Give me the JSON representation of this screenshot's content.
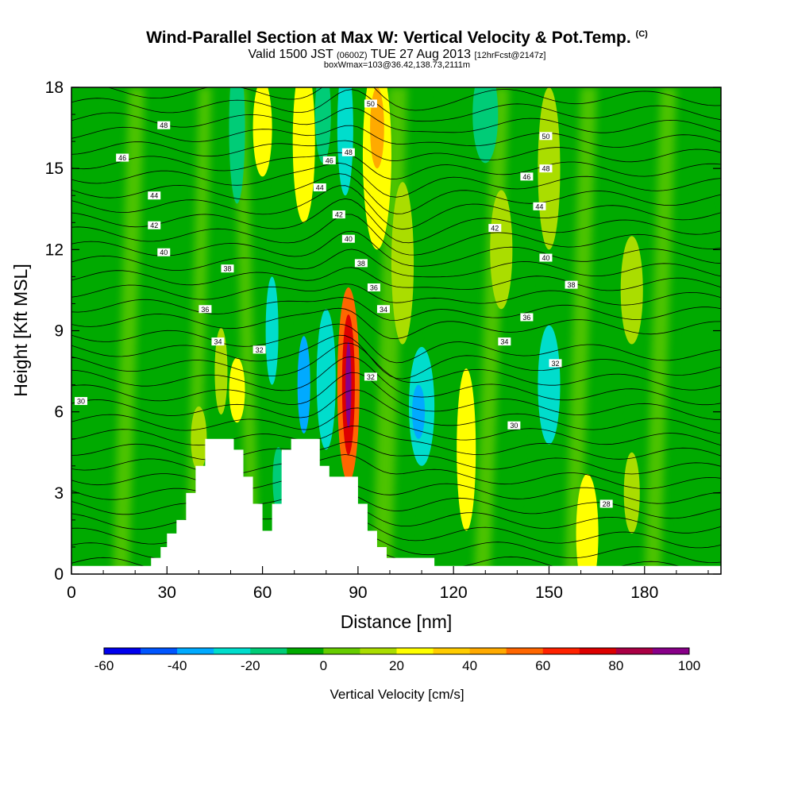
{
  "header": {
    "title": "Wind-Parallel Section at Max W: Vertical Velocity & Pot.Temp.",
    "title_suffix": "(C)",
    "subtitle_valid": "Valid 1500 JST",
    "subtitle_utc": "(0600Z)",
    "subtitle_date": "TUE 27 Aug 2013",
    "subtitle_fcst": "[12hrFcst@2147z]",
    "info": "boxWmax=103@36.42,138.73,2111m"
  },
  "chart_data": {
    "type": "heatmap",
    "title": "Wind-Parallel Section at Max W: Vertical Velocity & Pot.Temp.",
    "xlabel": "Distance [nm]",
    "ylabel": "Height [Kft MSL]",
    "xlim": [
      0,
      204
    ],
    "ylim": [
      0,
      18
    ],
    "xticks": [
      "0",
      "30",
      "60",
      "90",
      "120",
      "150",
      "180"
    ],
    "yticks": [
      "0",
      "3",
      "6",
      "9",
      "12",
      "15",
      "18"
    ],
    "colorbar": {
      "label": "Vertical Velocity [cm/s]",
      "range": [
        -60,
        100
      ],
      "ticks": [
        "-60",
        "-40",
        "-20",
        "0",
        "20",
        "40",
        "60",
        "80",
        "100"
      ],
      "colors": [
        "#0000ee",
        "#0055ff",
        "#00aaff",
        "#00ddcc",
        "#00cc77",
        "#00aa00",
        "#66cc00",
        "#aadd00",
        "#ffff00",
        "#ffcc00",
        "#ffaa00",
        "#ff6600",
        "#ff2200",
        "#dd0000",
        "#aa0044",
        "#880088"
      ]
    },
    "max_w": {
      "x": 87,
      "y": 7.0,
      "value": 103
    },
    "terrain_top_kft": [
      [
        0,
        0.3
      ],
      [
        22,
        0.3
      ],
      [
        25,
        0.6
      ],
      [
        28,
        1.0
      ],
      [
        30,
        1.5
      ],
      [
        33,
        2.0
      ],
      [
        36,
        3.0
      ],
      [
        39,
        4.0
      ],
      [
        42,
        5.0
      ],
      [
        48,
        5.0
      ],
      [
        51,
        4.6
      ],
      [
        54,
        3.6
      ],
      [
        57,
        2.6
      ],
      [
        60,
        1.6
      ],
      [
        63,
        2.6
      ],
      [
        66,
        4.6
      ],
      [
        69,
        5.0
      ],
      [
        75,
        5.0
      ],
      [
        78,
        4.0
      ],
      [
        81,
        3.6
      ],
      [
        87,
        3.6
      ],
      [
        90,
        2.6
      ],
      [
        93,
        1.6
      ],
      [
        96,
        1.0
      ],
      [
        99,
        0.6
      ],
      [
        105,
        0.6
      ],
      [
        114,
        0.3
      ],
      [
        126,
        0.3
      ],
      [
        204,
        0.3
      ]
    ],
    "theta_labels": [
      {
        "text": "48",
        "x": 29,
        "y": 16.6
      },
      {
        "text": "46",
        "x": 16,
        "y": 15.4
      },
      {
        "text": "44",
        "x": 26,
        "y": 14.0
      },
      {
        "text": "42",
        "x": 26,
        "y": 12.9
      },
      {
        "text": "40",
        "x": 29,
        "y": 11.9
      },
      {
        "text": "38",
        "x": 49,
        "y": 11.3
      },
      {
        "text": "36",
        "x": 42,
        "y": 9.8
      },
      {
        "text": "34",
        "x": 46,
        "y": 8.6
      },
      {
        "text": "32",
        "x": 59,
        "y": 8.3
      },
      {
        "text": "30",
        "x": 3,
        "y": 6.4
      },
      {
        "text": "50",
        "x": 94,
        "y": 17.4
      },
      {
        "text": "48",
        "x": 87,
        "y": 15.6
      },
      {
        "text": "46",
        "x": 81,
        "y": 15.3
      },
      {
        "text": "44",
        "x": 78,
        "y": 14.3
      },
      {
        "text": "42",
        "x": 84,
        "y": 13.3
      },
      {
        "text": "40",
        "x": 87,
        "y": 12.4
      },
      {
        "text": "38",
        "x": 91,
        "y": 11.5
      },
      {
        "text": "36",
        "x": 95,
        "y": 10.6
      },
      {
        "text": "34",
        "x": 98,
        "y": 9.8
      },
      {
        "text": "32",
        "x": 94,
        "y": 7.3
      },
      {
        "text": "50",
        "x": 149,
        "y": 16.2
      },
      {
        "text": "48",
        "x": 149,
        "y": 15.0
      },
      {
        "text": "46",
        "x": 143,
        "y": 14.7
      },
      {
        "text": "44",
        "x": 147,
        "y": 13.6
      },
      {
        "text": "42",
        "x": 133,
        "y": 12.8
      },
      {
        "text": "40",
        "x": 149,
        "y": 11.7
      },
      {
        "text": "38",
        "x": 157,
        "y": 10.7
      },
      {
        "text": "36",
        "x": 143,
        "y": 9.5
      },
      {
        "text": "34",
        "x": 136,
        "y": 8.6
      },
      {
        "text": "32",
        "x": 152,
        "y": 7.8
      },
      {
        "text": "30",
        "x": 139,
        "y": 5.5
      },
      {
        "text": "28",
        "x": 168,
        "y": 2.6
      }
    ],
    "w_features": [
      {
        "x": 87,
        "y": 7.0,
        "rx": 3.5,
        "ry": 3.6,
        "value": 55
      },
      {
        "x": 87,
        "y": 7.0,
        "rx": 2.0,
        "ry": 2.6,
        "value": 75
      },
      {
        "x": 87,
        "y": 7.0,
        "rx": 0.9,
        "ry": 1.6,
        "value": 100
      },
      {
        "x": 96,
        "y": 15.5,
        "rx": 4.5,
        "ry": 3.5,
        "value": 25
      },
      {
        "x": 96,
        "y": 16.5,
        "rx": 2.2,
        "ry": 1.5,
        "value": 45
      },
      {
        "x": 73,
        "y": 16.0,
        "rx": 3.5,
        "ry": 3.0,
        "value": 25
      },
      {
        "x": 60,
        "y": 16.5,
        "rx": 3.0,
        "ry": 1.8,
        "value": 25
      },
      {
        "x": 86,
        "y": 16.5,
        "rx": 2.5,
        "ry": 2.5,
        "value": -25
      },
      {
        "x": 79,
        "y": 17.0,
        "rx": 2.5,
        "ry": 1.8,
        "value": -15
      },
      {
        "x": 52,
        "y": 16.5,
        "rx": 2.5,
        "ry": 2.8,
        "value": -15
      },
      {
        "x": 80,
        "y": 7.2,
        "rx": 3.0,
        "ry": 2.6,
        "value": -25
      },
      {
        "x": 73,
        "y": 7.0,
        "rx": 2.0,
        "ry": 1.8,
        "value": -35
      },
      {
        "x": 63,
        "y": 9.0,
        "rx": 2.0,
        "ry": 2.0,
        "value": -25
      },
      {
        "x": 52,
        "y": 6.8,
        "rx": 2.5,
        "ry": 1.2,
        "value": 25
      },
      {
        "x": 47,
        "y": 7.5,
        "rx": 2.0,
        "ry": 1.6,
        "value": 15
      },
      {
        "x": 110,
        "y": 6.2,
        "rx": 4.0,
        "ry": 2.2,
        "value": -25
      },
      {
        "x": 109,
        "y": 6.0,
        "rx": 2.0,
        "ry": 1.0,
        "value": -35
      },
      {
        "x": 124,
        "y": 4.6,
        "rx": 3.0,
        "ry": 3.0,
        "value": 25
      },
      {
        "x": 150,
        "y": 7.0,
        "rx": 3.5,
        "ry": 2.2,
        "value": -25
      },
      {
        "x": 162,
        "y": 1.5,
        "rx": 3.5,
        "ry": 2.2,
        "value": 25
      },
      {
        "x": 176,
        "y": 3.0,
        "rx": 2.5,
        "ry": 1.5,
        "value": 15
      },
      {
        "x": 176,
        "y": 10.5,
        "rx": 3.5,
        "ry": 2.0,
        "value": 15
      },
      {
        "x": 135,
        "y": 12.0,
        "rx": 3.5,
        "ry": 2.2,
        "value": 15
      },
      {
        "x": 130,
        "y": 17.0,
        "rx": 4.0,
        "ry": 1.8,
        "value": -15
      },
      {
        "x": 150,
        "y": 15.0,
        "rx": 3.5,
        "ry": 3.0,
        "value": 15
      },
      {
        "x": 104,
        "y": 11.5,
        "rx": 3.5,
        "ry": 3.0,
        "value": 15
      },
      {
        "x": 65,
        "y": 3.5,
        "rx": 1.8,
        "ry": 1.2,
        "value": -15
      },
      {
        "x": 40,
        "y": 5.0,
        "rx": 2.5,
        "ry": 1.2,
        "value": 15
      }
    ]
  }
}
